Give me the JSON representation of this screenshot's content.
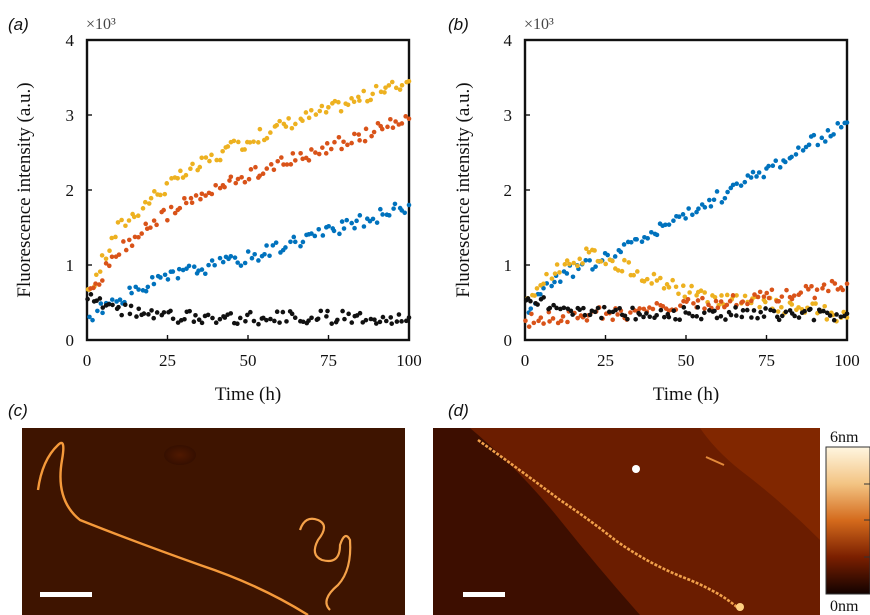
{
  "panels": {
    "a": "(a)",
    "b": "(b)",
    "c": "(c)",
    "d": "(d)"
  },
  "chart_data": [
    {
      "type": "scatter",
      "panel": "(a)",
      "title": "",
      "xlabel": "Time (h)",
      "ylabel": "Fluorescence intensity (a.u.)",
      "y_multiplier": "×10³",
      "xlim": [
        0,
        100
      ],
      "ylim": [
        0,
        4
      ],
      "xticks": [
        "0",
        "25",
        "50",
        "75",
        "100"
      ],
      "yticks": [
        "0",
        "1",
        "2",
        "3",
        "4"
      ],
      "grid": false,
      "series": [
        {
          "color": "#EDB120",
          "x": [
            0,
            10,
            20,
            30,
            40,
            50,
            60,
            70,
            80,
            90,
            100
          ],
          "y": [
            0.6,
            1.5,
            1.9,
            2.2,
            2.45,
            2.65,
            2.85,
            3.0,
            3.15,
            3.3,
            3.45
          ]
        },
        {
          "color": "#D95319",
          "x": [
            0,
            10,
            20,
            30,
            40,
            50,
            60,
            70,
            80,
            90,
            100
          ],
          "y": [
            0.55,
            1.2,
            1.55,
            1.8,
            2.0,
            2.2,
            2.35,
            2.5,
            2.65,
            2.8,
            2.95
          ]
        },
        {
          "color": "#0072BD",
          "x": [
            0,
            10,
            20,
            30,
            40,
            50,
            60,
            70,
            80,
            90,
            100
          ],
          "y": [
            0.3,
            0.55,
            0.75,
            0.9,
            1.0,
            1.1,
            1.25,
            1.4,
            1.5,
            1.65,
            1.8
          ]
        },
        {
          "color": "#111111",
          "x": [
            0,
            10,
            20,
            30,
            40,
            50,
            60,
            70,
            80,
            90,
            100
          ],
          "y": [
            0.55,
            0.4,
            0.35,
            0.3,
            0.3,
            0.3,
            0.3,
            0.3,
            0.3,
            0.3,
            0.3
          ]
        }
      ]
    },
    {
      "type": "scatter",
      "panel": "(b)",
      "title": "",
      "xlabel": "Time (h)",
      "ylabel": "Fluorescence intensity (a.u.)",
      "y_multiplier": "×10³",
      "xlim": [
        0,
        100
      ],
      "ylim": [
        0,
        4
      ],
      "xticks": [
        "0",
        "25",
        "50",
        "75",
        "100"
      ],
      "yticks": [
        "0",
        "1",
        "2",
        "3",
        "4"
      ],
      "grid": false,
      "series": [
        {
          "color": "#0072BD",
          "x": [
            0,
            10,
            20,
            30,
            40,
            50,
            60,
            70,
            80,
            90,
            100
          ],
          "y": [
            0.4,
            0.85,
            1.0,
            1.2,
            1.45,
            1.65,
            1.9,
            2.15,
            2.4,
            2.65,
            2.9
          ]
        },
        {
          "color": "#EDB120",
          "x": [
            0,
            10,
            20,
            30,
            40,
            50,
            60,
            70,
            80,
            90,
            100
          ],
          "y": [
            0.5,
            0.95,
            1.15,
            1.0,
            0.8,
            0.65,
            0.55,
            0.5,
            0.45,
            0.4,
            0.3
          ]
        },
        {
          "color": "#D95319",
          "x": [
            0,
            10,
            20,
            30,
            40,
            50,
            60,
            70,
            80,
            90,
            100
          ],
          "y": [
            0.25,
            0.3,
            0.35,
            0.35,
            0.4,
            0.45,
            0.5,
            0.55,
            0.6,
            0.65,
            0.75
          ]
        },
        {
          "color": "#111111",
          "x": [
            0,
            10,
            20,
            30,
            40,
            50,
            60,
            70,
            80,
            90,
            100
          ],
          "y": [
            0.55,
            0.45,
            0.4,
            0.35,
            0.35,
            0.35,
            0.35,
            0.35,
            0.35,
            0.35,
            0.35
          ]
        }
      ]
    }
  ],
  "colorbar": {
    "top_label": "6nm",
    "bottom_label": "0nm"
  }
}
